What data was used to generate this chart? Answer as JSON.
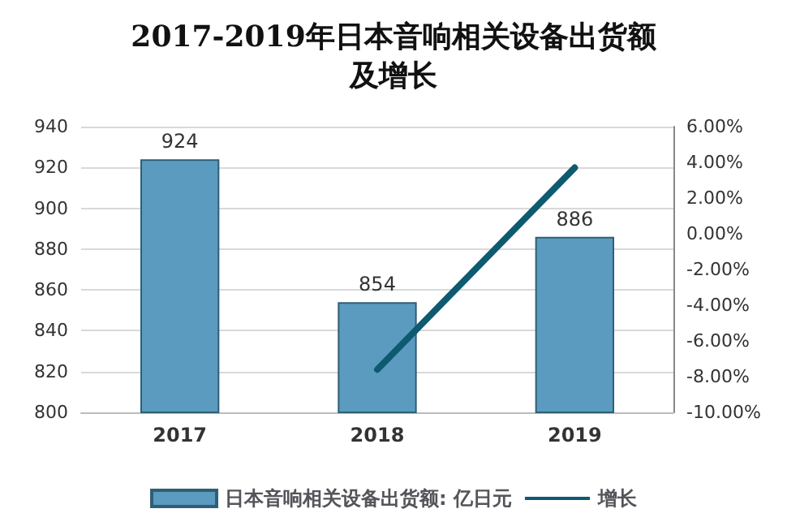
{
  "chart_data": {
    "type": "bar",
    "title": "2017-2019年日本音响相关设备出货额及增长",
    "categories": [
      "2017",
      "2018",
      "2019"
    ],
    "series": [
      {
        "name": "日本音响相关设备出货额: 亿日元",
        "color": "#5b9bbf",
        "values": [
          924,
          854,
          886
        ]
      },
      {
        "name": "增长",
        "type": "line",
        "axis": "y2",
        "color": "#0e5a70",
        "values": [
          null,
          -7.6,
          3.7
        ]
      }
    ],
    "ylim": [
      800,
      940
    ],
    "yticks": [
      800,
      820,
      840,
      860,
      880,
      900,
      920,
      940
    ],
    "y2lim": [
      -10,
      6
    ],
    "y2ticks": [
      {
        "value": -10,
        "label": "-10.00%"
      },
      {
        "value": -8,
        "label": "-8.00%"
      },
      {
        "value": -6,
        "label": "-6.00%"
      },
      {
        "value": -4,
        "label": "-4.00%"
      },
      {
        "value": -2,
        "label": "-2.00%"
      },
      {
        "value": 0,
        "label": "0.00%"
      },
      {
        "value": 2,
        "label": "2.00%"
      },
      {
        "value": 4,
        "label": "4.00%"
      },
      {
        "value": 6,
        "label": "6.00%"
      }
    ],
    "value_labels": [
      "924",
      "854",
      "886"
    ],
    "grid": "y",
    "legend": "bottom",
    "marker": "none"
  }
}
